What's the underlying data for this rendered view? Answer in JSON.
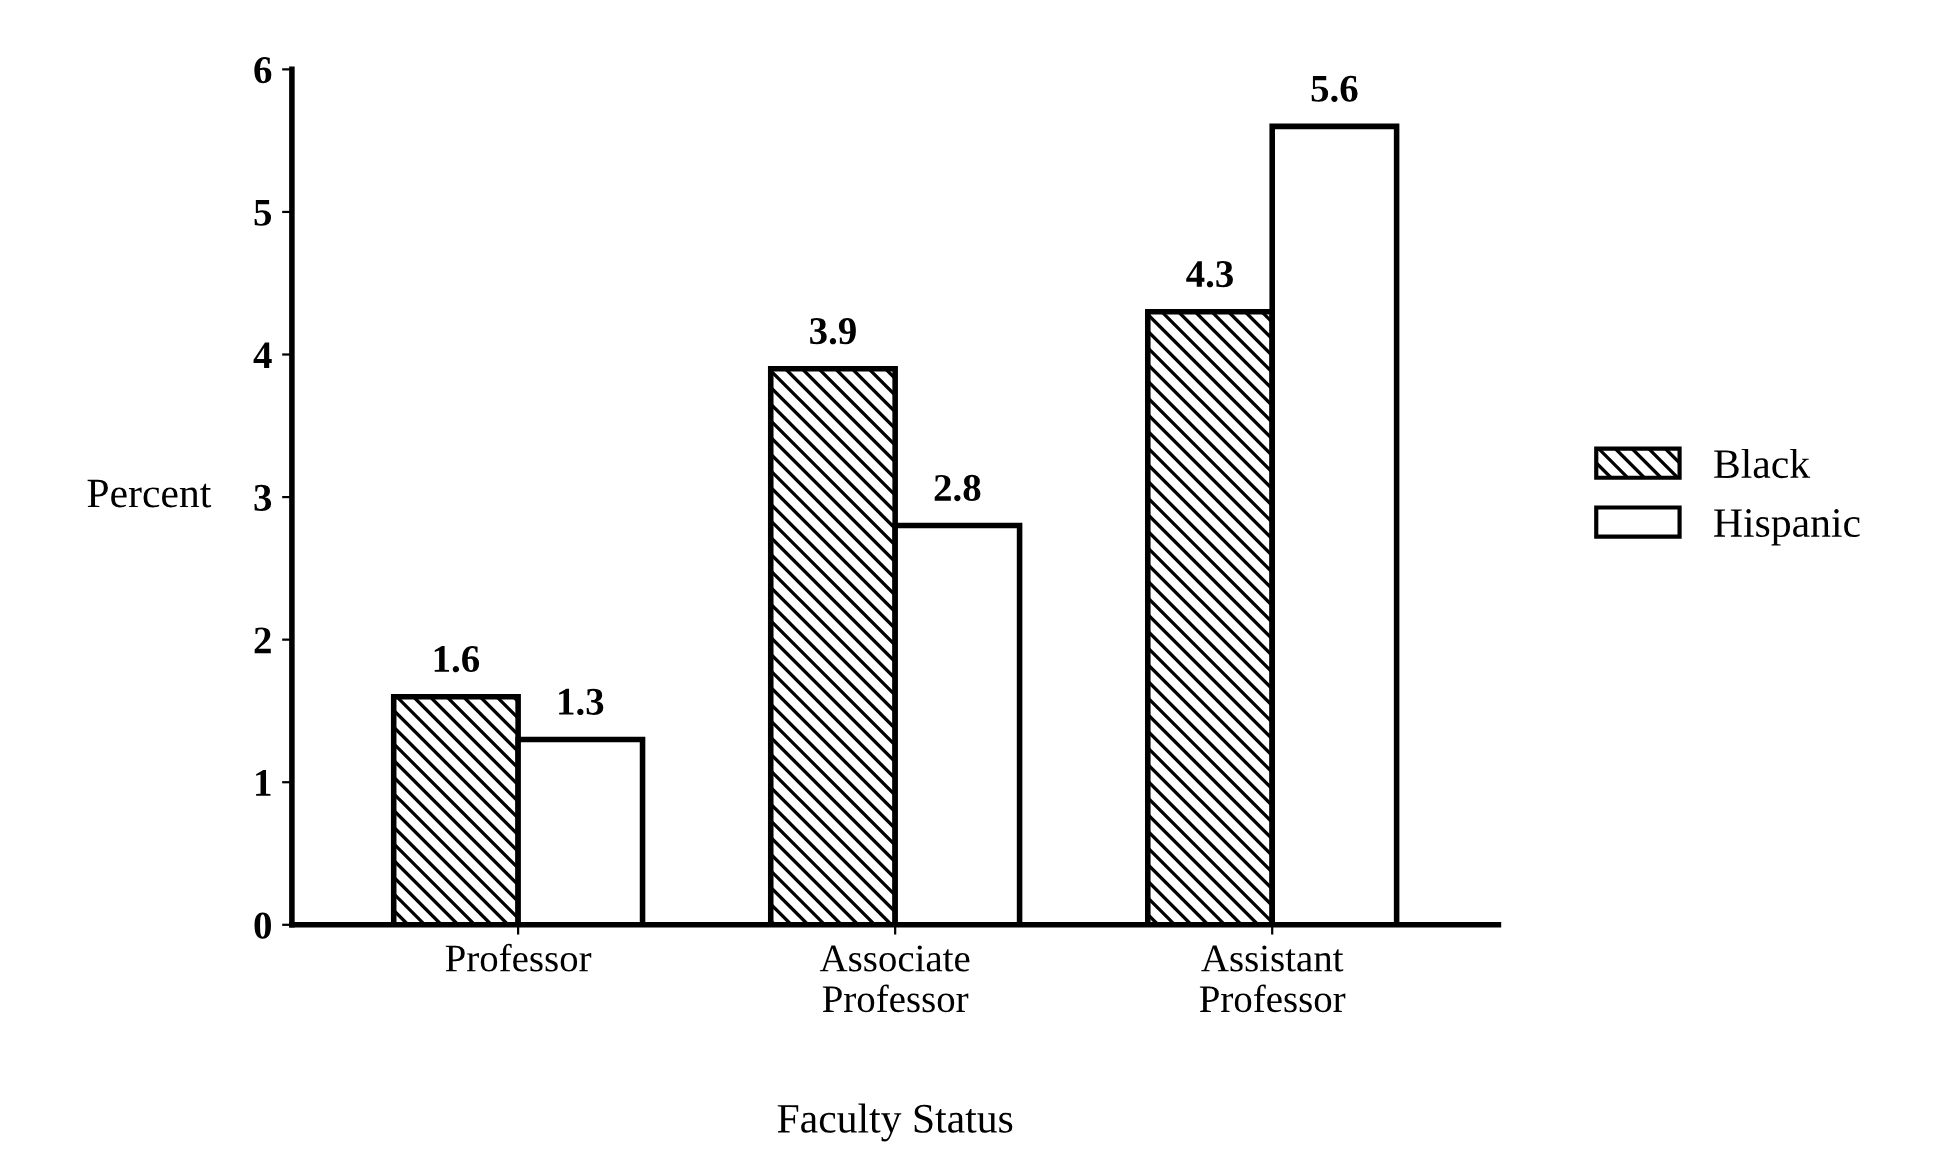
{
  "chart_data": {
    "type": "bar",
    "xlabel": "Faculty Status",
    "ylabel": "Percent",
    "categories": [
      "Professor",
      "Associate\nProfessor",
      "Assistant\nProfessor"
    ],
    "series": [
      {
        "name": "Black",
        "color": "#000000",
        "values": [
          1.6,
          3.9,
          4.3
        ]
      },
      {
        "name": "Hispanic",
        "color": "#ffffff",
        "values": [
          1.3,
          2.8,
          5.6
        ]
      }
    ],
    "ylim": [
      0,
      6
    ],
    "yticks": [
      0,
      1,
      2,
      3,
      4,
      5,
      6
    ],
    "grid": false,
    "legend": "right",
    "data_labels": true
  }
}
